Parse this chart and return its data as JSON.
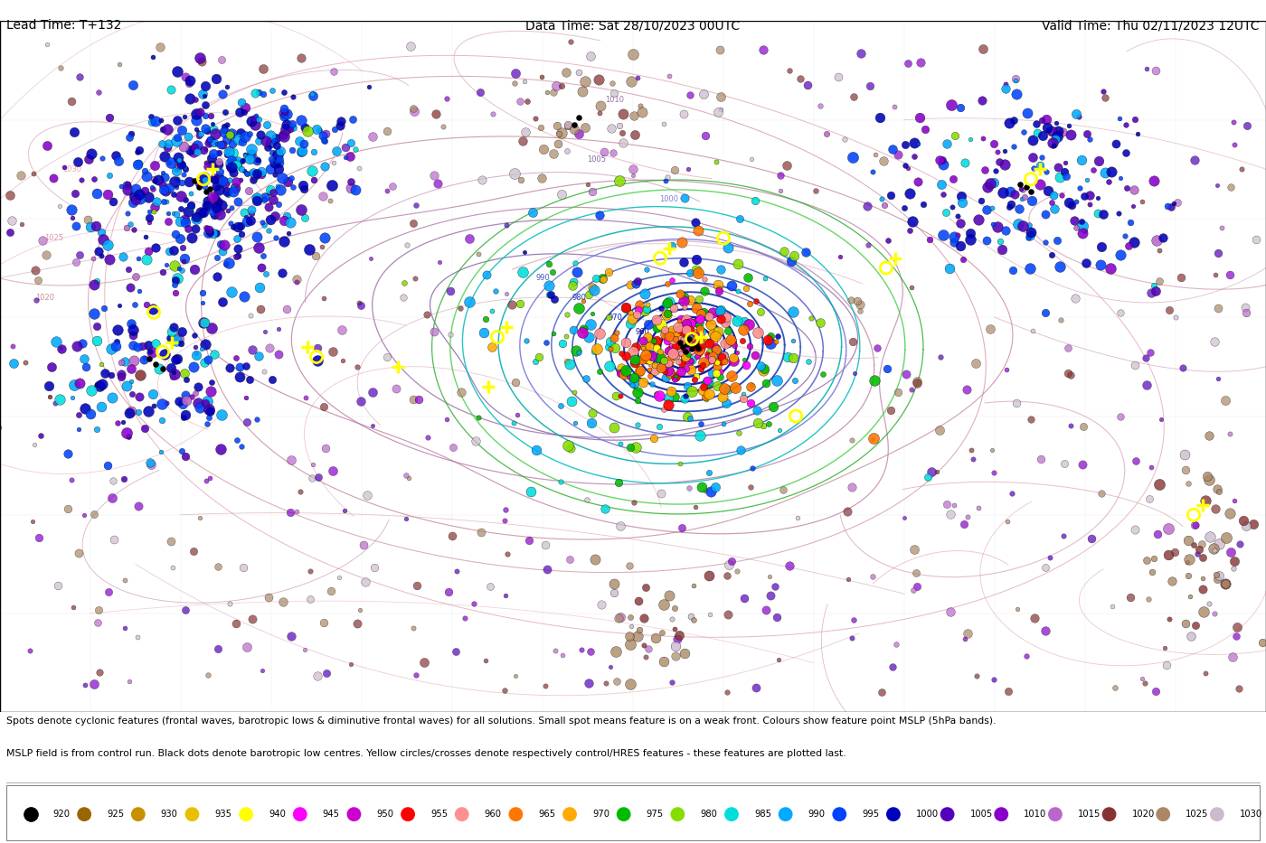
{
  "title_left": "Lead Time: T+132",
  "title_center": "Data Time: Sat 28/10/2023 00UTC",
  "title_right": "Valid Time: Thu 02/11/2023 12UTC",
  "description_line1": "Spots denote cyclonic features (frontal waves, barotropic lows & diminutive frontal waves) for all solutions. Small spot means feature is on a weak front. Colours show feature point MSLP (5hPa bands).",
  "description_line2": "MSLP field is from control run. Black dots denote barotropic low centres. Yellow circles/crosses denote respectively control/HRES features - these features are plotted last.",
  "legend_entries": [
    {
      "value": 920,
      "color": "#000000"
    },
    {
      "value": 925,
      "color": "#9a6600"
    },
    {
      "value": 930,
      "color": "#c89000"
    },
    {
      "value": 935,
      "color": "#e8c000"
    },
    {
      "value": 940,
      "color": "#ffff00"
    },
    {
      "value": 945,
      "color": "#ff00ff"
    },
    {
      "value": 950,
      "color": "#cc00cc"
    },
    {
      "value": 955,
      "color": "#ff0000"
    },
    {
      "value": 960,
      "color": "#ff9090"
    },
    {
      "value": 965,
      "color": "#ff7700"
    },
    {
      "value": 970,
      "color": "#ffaa00"
    },
    {
      "value": 975,
      "color": "#00bb00"
    },
    {
      "value": 980,
      "color": "#88dd00"
    },
    {
      "value": 985,
      "color": "#00dddd"
    },
    {
      "value": 990,
      "color": "#00aaff"
    },
    {
      "value": 995,
      "color": "#0044ff"
    },
    {
      "value": 1000,
      "color": "#0000bb"
    },
    {
      "value": 1005,
      "color": "#5500bb"
    },
    {
      "value": 1010,
      "color": "#8800cc"
    },
    {
      "value": 1015,
      "color": "#bb66cc"
    },
    {
      "value": 1020,
      "color": "#883333"
    },
    {
      "value": 1025,
      "color": "#aa8866"
    },
    {
      "value": 1030,
      "color": "#ccbbcc"
    }
  ],
  "bg_color": "#ffffff",
  "map_bg": "#ffffff"
}
